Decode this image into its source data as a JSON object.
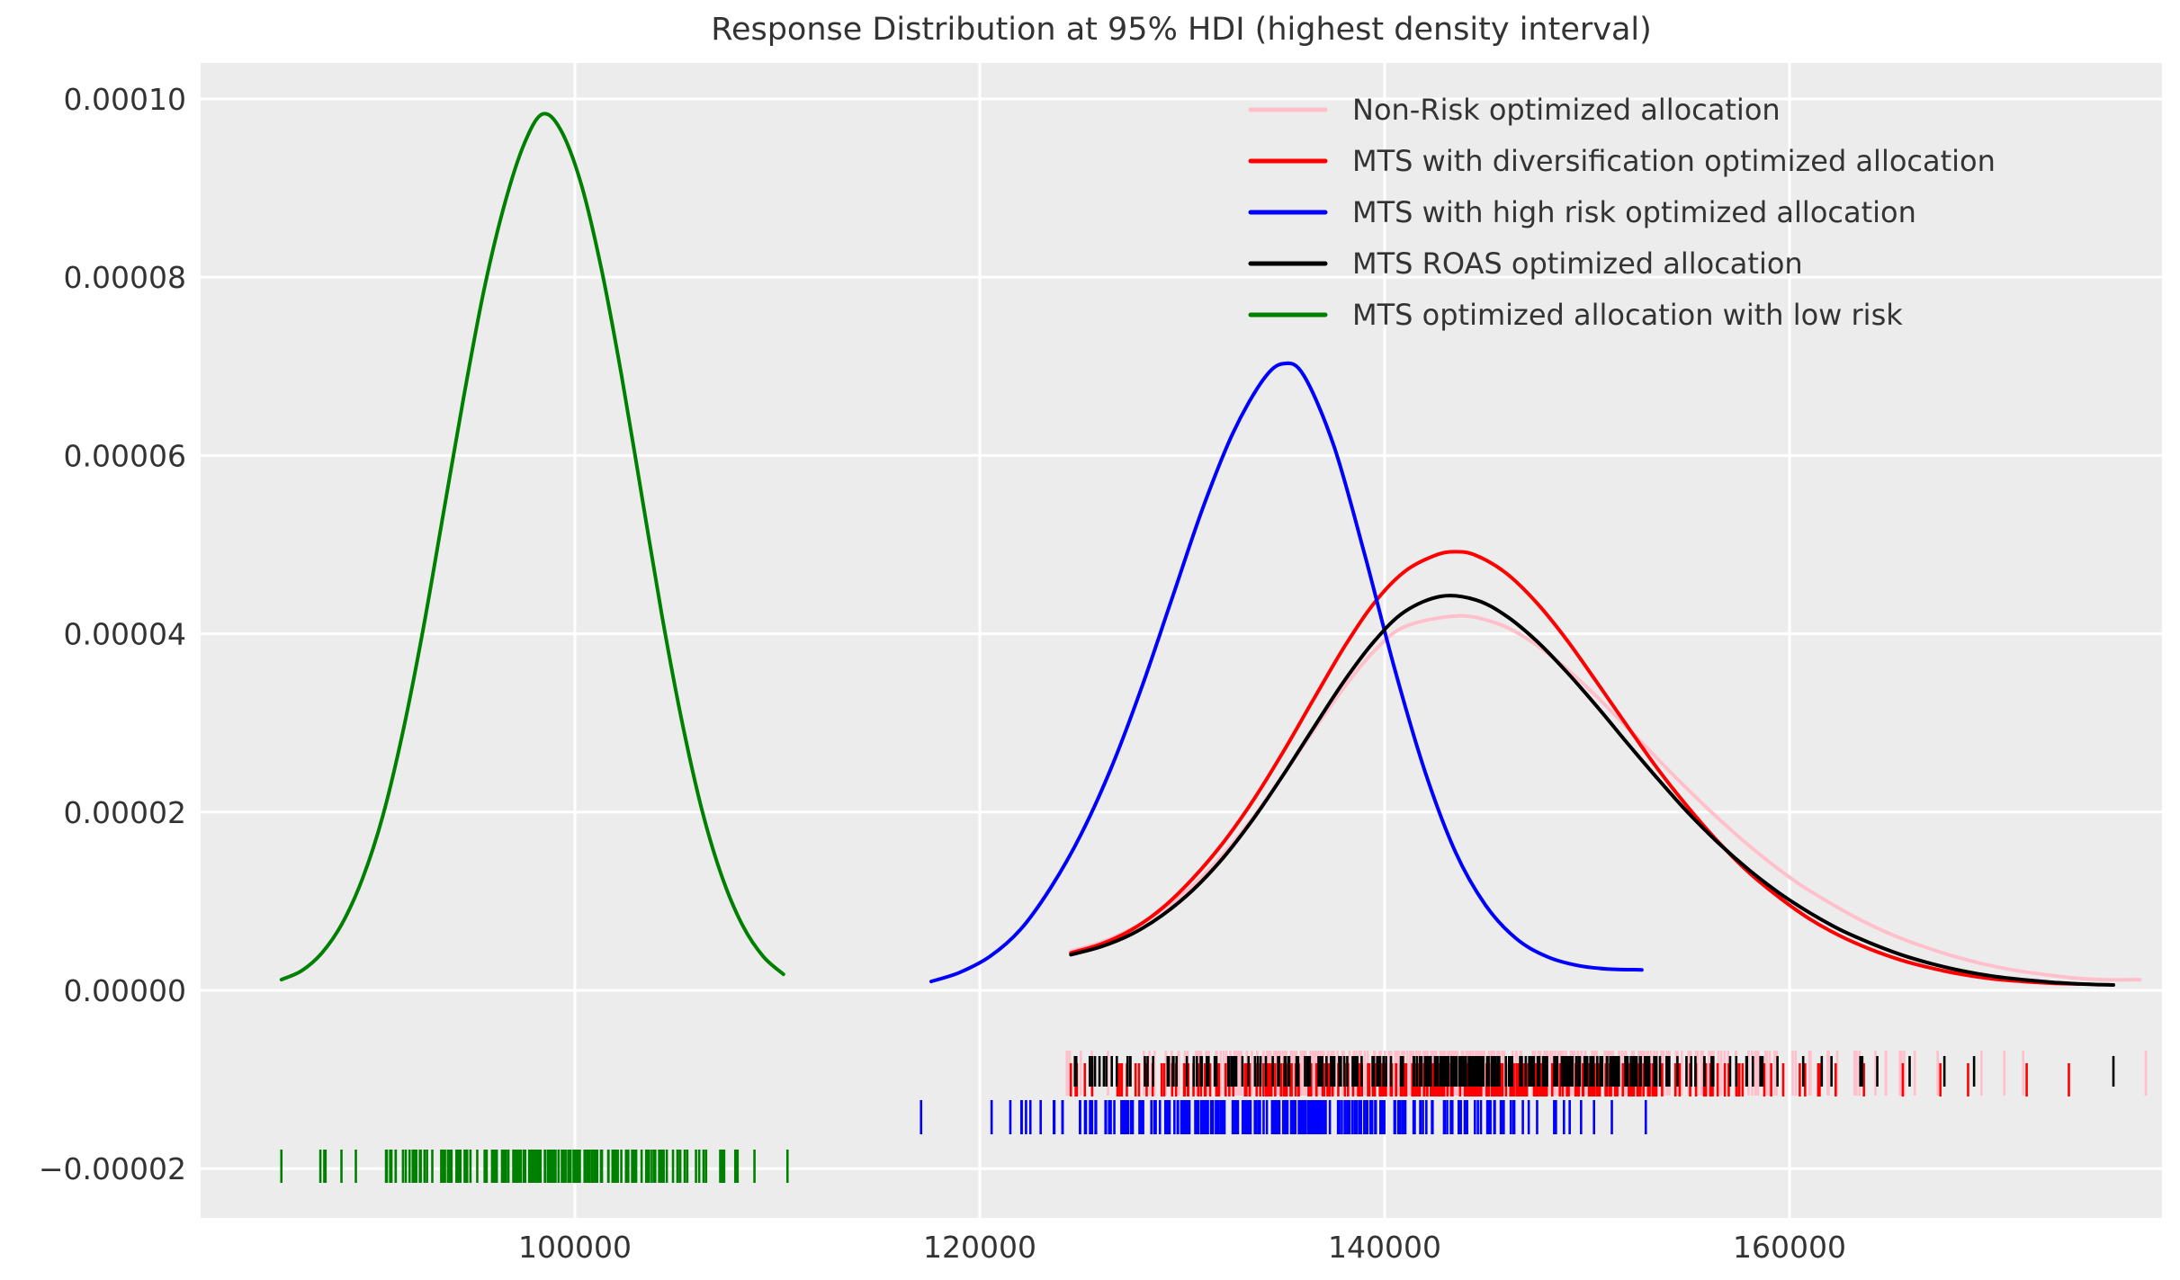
{
  "title": "Response Distribution at 95% HDI (highest density interval)",
  "colors": {
    "figure_background": "#ffffff",
    "axes_background": "#ececec",
    "gridline": "#ffffff",
    "text": "#333333",
    "pink": "#ffc0cb",
    "red": "#ff0000",
    "blue": "#0000ff",
    "black": "#000000",
    "green": "#008000"
  },
  "chart_data": {
    "type": "line",
    "title": "Response Distribution at 95% HDI (highest density interval)",
    "xlabel": "",
    "ylabel": "",
    "grid": true,
    "legend_position": "upper right",
    "x_range": [
      81511,
      178400
    ],
    "y_range": [
      -2.553e-05,
      0.00010403
    ],
    "x_ticks": [
      100000,
      120000,
      140000,
      160000
    ],
    "x_tick_labels": [
      "100000",
      "120000",
      "140000",
      "160000"
    ],
    "y_ticks": [
      0.0001,
      8e-05,
      6e-05,
      4e-05,
      2e-05,
      0.0,
      -2e-05
    ],
    "y_tick_labels": [
      "0.00010",
      "0.00008",
      "0.00006",
      "0.00004",
      "0.00002",
      "0.00000",
      "−0.00002"
    ],
    "series": [
      {
        "name": "Non-Risk optimized allocation",
        "color": "#ffc0cb",
        "points": [
          [
            124500,
            4.4e-06
          ],
          [
            126000,
            5.4e-06
          ],
          [
            127500,
            6.9e-06
          ],
          [
            129000,
            9e-06
          ],
          [
            130500,
            1.17e-05
          ],
          [
            132000,
            1.52e-05
          ],
          [
            133500,
            1.94e-05
          ],
          [
            135000,
            2.42e-05
          ],
          [
            136500,
            2.92e-05
          ],
          [
            138000,
            3.4e-05
          ],
          [
            139500,
            3.81e-05
          ],
          [
            141000,
            4.08e-05
          ],
          [
            143600,
            4.2e-05
          ],
          [
            145500,
            4.12e-05
          ],
          [
            147000,
            3.95e-05
          ],
          [
            148500,
            3.7e-05
          ],
          [
            150000,
            3.4e-05
          ],
          [
            151500,
            3.06e-05
          ],
          [
            153000,
            2.71e-05
          ],
          [
            154500,
            2.36e-05
          ],
          [
            156000,
            2.03e-05
          ],
          [
            157500,
            1.72e-05
          ],
          [
            159000,
            1.44e-05
          ],
          [
            160500,
            1.19e-05
          ],
          [
            162000,
            9.8e-06
          ],
          [
            163500,
            7.9e-06
          ],
          [
            165000,
            6.3e-06
          ],
          [
            166500,
            5e-06
          ],
          [
            168000,
            3.9e-06
          ],
          [
            169500,
            3e-06
          ],
          [
            171000,
            2.3e-06
          ],
          [
            172500,
            1.8e-06
          ],
          [
            174000,
            1.4e-06
          ],
          [
            175500,
            1.2e-06
          ],
          [
            177300,
            1.2e-06
          ]
        ],
        "rug": {
          "mean": 144000,
          "sd": 9500,
          "min": 124300,
          "max": 177600,
          "count": 300,
          "seed": 11
        }
      },
      {
        "name": "MTS with diversification optimized allocation",
        "color": "#ff0000",
        "points": [
          [
            124500,
            4.2e-06
          ],
          [
            126000,
            5.2e-06
          ],
          [
            127500,
            6.8e-06
          ],
          [
            129000,
            9.2e-06
          ],
          [
            130500,
            1.25e-05
          ],
          [
            132000,
            1.65e-05
          ],
          [
            133500,
            2.13e-05
          ],
          [
            135000,
            2.68e-05
          ],
          [
            136500,
            3.27e-05
          ],
          [
            138000,
            3.85e-05
          ],
          [
            139500,
            4.35e-05
          ],
          [
            141000,
            4.7e-05
          ],
          [
            142500,
            4.88e-05
          ],
          [
            143500,
            4.92e-05
          ],
          [
            144500,
            4.88e-05
          ],
          [
            146000,
            4.68e-05
          ],
          [
            147500,
            4.35e-05
          ],
          [
            149000,
            3.93e-05
          ],
          [
            150500,
            3.45e-05
          ],
          [
            152000,
            2.96e-05
          ],
          [
            153500,
            2.48e-05
          ],
          [
            155000,
            2.05e-05
          ],
          [
            156500,
            1.66e-05
          ],
          [
            158000,
            1.32e-05
          ],
          [
            159500,
            1.04e-05
          ],
          [
            161000,
            8e-06
          ],
          [
            162500,
            6.1e-06
          ],
          [
            164000,
            4.6e-06
          ],
          [
            165500,
            3.4e-06
          ],
          [
            167000,
            2.5e-06
          ],
          [
            168500,
            1.8e-06
          ],
          [
            170000,
            1.3e-06
          ],
          [
            171500,
            1e-06
          ],
          [
            173000,
            8e-07
          ],
          [
            174300,
            7e-07
          ]
        ],
        "rug": {
          "mean": 143500,
          "sd": 9000,
          "min": 124500,
          "max": 173800,
          "count": 300,
          "seed": 22
        }
      },
      {
        "name": "MTS with high risk optimized allocation",
        "color": "#0000ff",
        "points": [
          [
            117600,
            1e-06
          ],
          [
            119000,
            2e-06
          ],
          [
            120500,
            3.8e-06
          ],
          [
            122000,
            6.8e-06
          ],
          [
            123500,
            1.15e-05
          ],
          [
            125000,
            1.75e-05
          ],
          [
            126500,
            2.5e-05
          ],
          [
            128000,
            3.4e-05
          ],
          [
            129500,
            4.4e-05
          ],
          [
            131000,
            5.4e-05
          ],
          [
            132500,
            6.25e-05
          ],
          [
            134000,
            6.85e-05
          ],
          [
            135000,
            7.03e-05
          ],
          [
            136000,
            6.9e-05
          ],
          [
            137500,
            6.1e-05
          ],
          [
            139000,
            4.9e-05
          ],
          [
            140500,
            3.6e-05
          ],
          [
            142000,
            2.45e-05
          ],
          [
            143500,
            1.55e-05
          ],
          [
            145000,
            9.5e-06
          ],
          [
            146500,
            5.8e-06
          ],
          [
            148000,
            3.8e-06
          ],
          [
            149500,
            2.8e-06
          ],
          [
            151000,
            2.4e-06
          ],
          [
            152700,
            2.3e-06
          ]
        ],
        "rug": {
          "mean": 134200,
          "sd": 6600,
          "min": 117100,
          "max": 152900,
          "count": 260,
          "seed": 44
        }
      },
      {
        "name": "MTS ROAS optimized allocation",
        "color": "#000000",
        "points": [
          [
            124500,
            4e-06
          ],
          [
            126000,
            4.9e-06
          ],
          [
            127500,
            6.3e-06
          ],
          [
            129000,
            8.4e-06
          ],
          [
            130500,
            1.12e-05
          ],
          [
            132000,
            1.48e-05
          ],
          [
            133500,
            1.92e-05
          ],
          [
            135000,
            2.42e-05
          ],
          [
            136500,
            2.95e-05
          ],
          [
            138000,
            3.47e-05
          ],
          [
            139500,
            3.92e-05
          ],
          [
            141000,
            4.25e-05
          ],
          [
            142800,
            4.42e-05
          ],
          [
            144500,
            4.38e-05
          ],
          [
            146000,
            4.2e-05
          ],
          [
            147500,
            3.92e-05
          ],
          [
            149000,
            3.57e-05
          ],
          [
            150500,
            3.18e-05
          ],
          [
            152000,
            2.77e-05
          ],
          [
            153500,
            2.37e-05
          ],
          [
            155000,
            1.99e-05
          ],
          [
            156500,
            1.65e-05
          ],
          [
            158000,
            1.35e-05
          ],
          [
            159500,
            1.09e-05
          ],
          [
            161000,
            8.7e-06
          ],
          [
            162500,
            6.8e-06
          ],
          [
            164000,
            5.3e-06
          ],
          [
            165500,
            4e-06
          ],
          [
            167000,
            3e-06
          ],
          [
            168500,
            2.2e-06
          ],
          [
            170000,
            1.6e-06
          ],
          [
            171500,
            1.2e-06
          ],
          [
            173000,
            9e-07
          ],
          [
            174500,
            7e-07
          ],
          [
            176000,
            6e-07
          ]
        ],
        "rug": {
          "mean": 143500,
          "sd": 9200,
          "min": 124700,
          "max": 176000,
          "count": 300,
          "seed": 33
        }
      },
      {
        "name": "MTS optimized allocation with low risk",
        "color": "#008000",
        "points": [
          [
            85500,
            1.2e-06
          ],
          [
            86500,
            2.2e-06
          ],
          [
            87500,
            4.2e-06
          ],
          [
            88500,
            7.5e-06
          ],
          [
            89500,
            1.25e-05
          ],
          [
            90500,
            1.95e-05
          ],
          [
            91500,
            2.9e-05
          ],
          [
            92500,
            4.05e-05
          ],
          [
            93500,
            5.35e-05
          ],
          [
            94500,
            6.65e-05
          ],
          [
            95500,
            7.85e-05
          ],
          [
            96500,
            8.8e-05
          ],
          [
            97500,
            9.5e-05
          ],
          [
            98400,
            9.83e-05
          ],
          [
            99300,
            9.65e-05
          ],
          [
            100300,
            9.05e-05
          ],
          [
            101300,
            8.1e-05
          ],
          [
            102300,
            6.9e-05
          ],
          [
            103300,
            5.55e-05
          ],
          [
            104300,
            4.2e-05
          ],
          [
            105300,
            3e-05
          ],
          [
            106300,
            2e-05
          ],
          [
            107300,
            1.25e-05
          ],
          [
            108300,
            7.2e-06
          ],
          [
            109300,
            3.8e-06
          ],
          [
            110300,
            1.8e-06
          ]
        ],
        "rug": {
          "mean": 98200,
          "sd": 4400,
          "min": 85500,
          "max": 110500,
          "count": 200,
          "seed": 55
        }
      }
    ]
  },
  "legend": {
    "entries": [
      {
        "label": "Non-Risk optimized allocation",
        "color": "#ffc0cb"
      },
      {
        "label": "MTS with diversification optimized allocation",
        "color": "#ff0000"
      },
      {
        "label": "MTS with high risk optimized allocation",
        "color": "#0000ff"
      },
      {
        "label": "MTS ROAS optimized allocation",
        "color": "#000000"
      },
      {
        "label": "MTS optimized allocation with low risk",
        "color": "#008000"
      }
    ]
  }
}
